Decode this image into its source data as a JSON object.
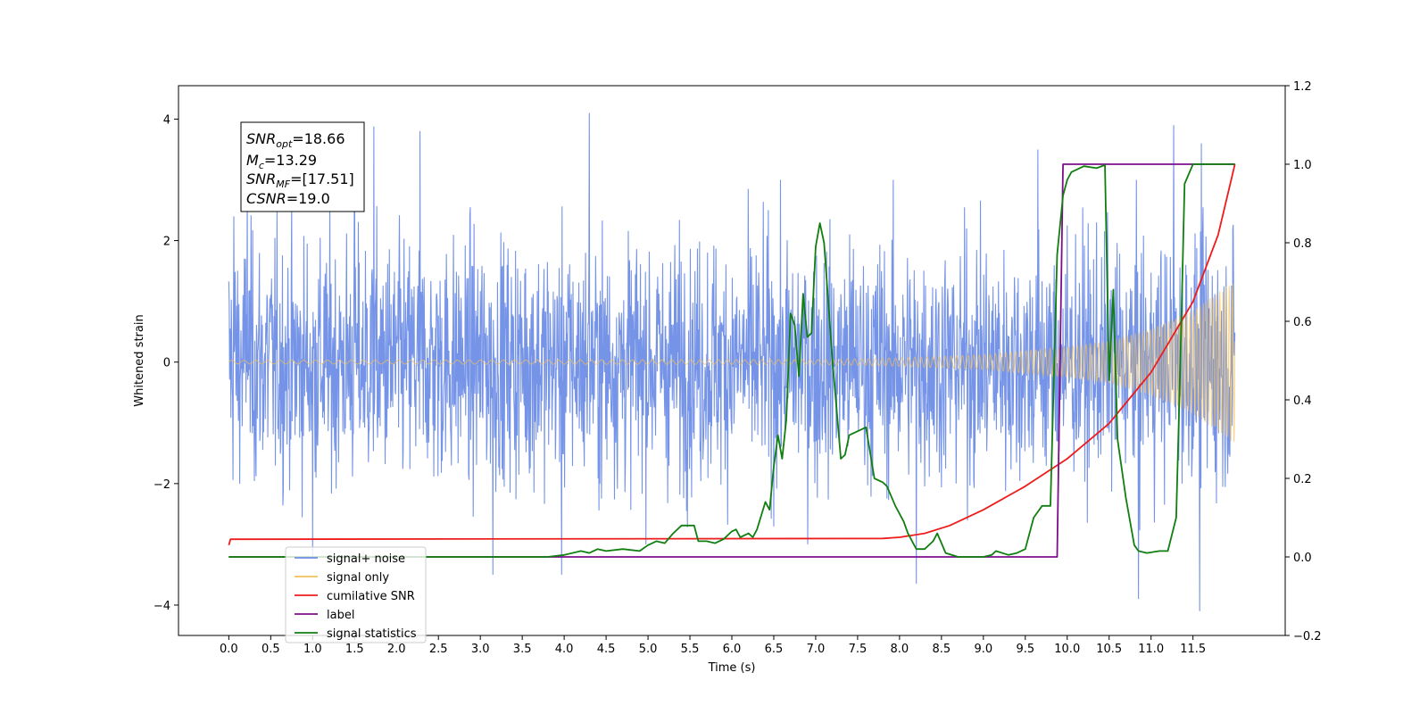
{
  "chart_data": {
    "type": "line",
    "xlabel": "Time (s)",
    "ylabel_left": "Whitened strain",
    "xlim": [
      -0.6,
      12.6
    ],
    "ylim_left": [
      -4.5,
      4.55
    ],
    "ylim_right": [
      -0.2,
      1.2
    ],
    "x_ticks": [
      "0.0",
      "0.5",
      "1.0",
      "1.5",
      "2.0",
      "2.5",
      "3.0",
      "3.5",
      "4.0",
      "4.5",
      "5.0",
      "5.5",
      "6.0",
      "6.5",
      "7.0",
      "7.5",
      "8.0",
      "8.5",
      "9.0",
      "9.5",
      "10.0",
      "10.5",
      "11.0",
      "11.5"
    ],
    "y_ticks_left": [
      "−4",
      "−2",
      "0",
      "2",
      "4"
    ],
    "y_ticks_right": [
      "−0.2",
      "0.0",
      "0.2",
      "0.4",
      "0.6",
      "0.8",
      "1.0",
      "1.2"
    ],
    "annotation_box": {
      "lines": [
        {
          "main": "SNR",
          "sub": "opt",
          "value": "=18.66"
        },
        {
          "main": "M",
          "sub": "c",
          "value": "=13.29"
        },
        {
          "main": "SNR",
          "sub": "MF",
          "value": "=[17.51]"
        },
        {
          "main": "CSNR",
          "sub": "",
          "value": "=19.0"
        }
      ]
    },
    "legend": {
      "placement": "lower-left",
      "entries": [
        "signal+ noise",
        "signal only",
        "cumilative SNR",
        "label",
        "signal statistics"
      ]
    },
    "series": [
      {
        "name": "signal+ noise",
        "axis": "left",
        "color": "#6f8ee6",
        "kind": "noise",
        "x_range": [
          0.0,
          12.0
        ],
        "std": 1.0,
        "peaks": [
          [
            0.06,
            2.4
          ],
          [
            0.22,
            2.9
          ],
          [
            1.5,
            3.7
          ],
          [
            1.73,
            3.88
          ],
          [
            2.28,
            3.8
          ],
          [
            4.3,
            4.1
          ],
          [
            9.65,
            3.5
          ],
          [
            11.27,
            3.9
          ],
          [
            11.6,
            3.6
          ],
          [
            1.0,
            -3.2
          ],
          [
            3.15,
            -3.5
          ],
          [
            3.97,
            -3.5
          ],
          [
            8.2,
            -3.65
          ],
          [
            10.85,
            -3.9
          ],
          [
            11.58,
            -4.1
          ]
        ]
      },
      {
        "name": "signal only",
        "axis": "left",
        "color": "#f2c15a",
        "kind": "chirp",
        "x_range": [
          0.0,
          12.0
        ],
        "envelope": [
          [
            0.0,
            0.03
          ],
          [
            7.0,
            0.04
          ],
          [
            8.0,
            0.07
          ],
          [
            9.0,
            0.12
          ],
          [
            10.0,
            0.25
          ],
          [
            10.5,
            0.35
          ],
          [
            11.0,
            0.55
          ],
          [
            11.5,
            0.85
          ],
          [
            12.0,
            1.35
          ]
        ]
      },
      {
        "name": "cumilative SNR",
        "axis": "right",
        "color": "#ee1c1c",
        "points": [
          [
            0.0,
            0.03
          ],
          [
            0.02,
            0.045
          ],
          [
            7.8,
            0.047
          ],
          [
            8.0,
            0.05
          ],
          [
            8.3,
            0.06
          ],
          [
            8.6,
            0.08
          ],
          [
            9.0,
            0.12
          ],
          [
            9.5,
            0.18
          ],
          [
            10.0,
            0.25
          ],
          [
            10.5,
            0.34
          ],
          [
            11.0,
            0.47
          ],
          [
            11.5,
            0.65
          ],
          [
            11.8,
            0.82
          ],
          [
            12.0,
            1.0
          ]
        ]
      },
      {
        "name": "label",
        "axis": "right",
        "color": "#7b0f8a",
        "points": [
          [
            0.0,
            0.0
          ],
          [
            9.88,
            0.0
          ],
          [
            9.95,
            1.0
          ],
          [
            12.0,
            1.0
          ]
        ]
      },
      {
        "name": "signal statistics",
        "axis": "right",
        "color": "#107f10",
        "points": [
          [
            0.0,
            0.0
          ],
          [
            3.8,
            0.0
          ],
          [
            4.0,
            0.005
          ],
          [
            4.2,
            0.015
          ],
          [
            4.3,
            0.01
          ],
          [
            4.4,
            0.02
          ],
          [
            4.5,
            0.015
          ],
          [
            4.7,
            0.02
          ],
          [
            4.9,
            0.015
          ],
          [
            5.0,
            0.03
          ],
          [
            5.1,
            0.04
          ],
          [
            5.2,
            0.035
          ],
          [
            5.3,
            0.06
          ],
          [
            5.4,
            0.08
          ],
          [
            5.55,
            0.08
          ],
          [
            5.6,
            0.04
          ],
          [
            5.7,
            0.04
          ],
          [
            5.8,
            0.035
          ],
          [
            5.9,
            0.045
          ],
          [
            6.0,
            0.065
          ],
          [
            6.05,
            0.07
          ],
          [
            6.1,
            0.05
          ],
          [
            6.2,
            0.06
          ],
          [
            6.25,
            0.05
          ],
          [
            6.3,
            0.07
          ],
          [
            6.4,
            0.14
          ],
          [
            6.45,
            0.12
          ],
          [
            6.5,
            0.23
          ],
          [
            6.55,
            0.31
          ],
          [
            6.6,
            0.25
          ],
          [
            6.65,
            0.35
          ],
          [
            6.7,
            0.62
          ],
          [
            6.75,
            0.59
          ],
          [
            6.8,
            0.46
          ],
          [
            6.85,
            0.67
          ],
          [
            6.9,
            0.56
          ],
          [
            6.95,
            0.57
          ],
          [
            7.0,
            0.79
          ],
          [
            7.05,
            0.85
          ],
          [
            7.1,
            0.8
          ],
          [
            7.2,
            0.5
          ],
          [
            7.3,
            0.25
          ],
          [
            7.35,
            0.26
          ],
          [
            7.4,
            0.31
          ],
          [
            7.5,
            0.32
          ],
          [
            7.6,
            0.33
          ],
          [
            7.7,
            0.2
          ],
          [
            7.8,
            0.19
          ],
          [
            7.85,
            0.18
          ],
          [
            7.95,
            0.13
          ],
          [
            8.05,
            0.09
          ],
          [
            8.1,
            0.06
          ],
          [
            8.2,
            0.02
          ],
          [
            8.3,
            0.02
          ],
          [
            8.4,
            0.04
          ],
          [
            8.45,
            0.06
          ],
          [
            8.55,
            0.01
          ],
          [
            8.7,
            0.0
          ],
          [
            9.0,
            0.0
          ],
          [
            9.1,
            0.005
          ],
          [
            9.15,
            0.015
          ],
          [
            9.3,
            0.005
          ],
          [
            9.4,
            0.01
          ],
          [
            9.5,
            0.02
          ],
          [
            9.6,
            0.1
          ],
          [
            9.7,
            0.13
          ],
          [
            9.8,
            0.13
          ],
          [
            9.88,
            0.77
          ],
          [
            9.95,
            0.92
          ],
          [
            10.0,
            0.96
          ],
          [
            10.05,
            0.98
          ],
          [
            10.2,
            0.995
          ],
          [
            10.35,
            0.99
          ],
          [
            10.45,
            0.998
          ],
          [
            10.5,
            0.45
          ],
          [
            10.55,
            0.68
          ],
          [
            10.6,
            0.3
          ],
          [
            10.7,
            0.15
          ],
          [
            10.8,
            0.03
          ],
          [
            10.85,
            0.015
          ],
          [
            10.95,
            0.01
          ],
          [
            11.1,
            0.015
          ],
          [
            11.2,
            0.015
          ],
          [
            11.3,
            0.1
          ],
          [
            11.35,
            0.5
          ],
          [
            11.4,
            0.95
          ],
          [
            11.5,
            1.0
          ],
          [
            12.0,
            1.0
          ]
        ]
      }
    ]
  }
}
